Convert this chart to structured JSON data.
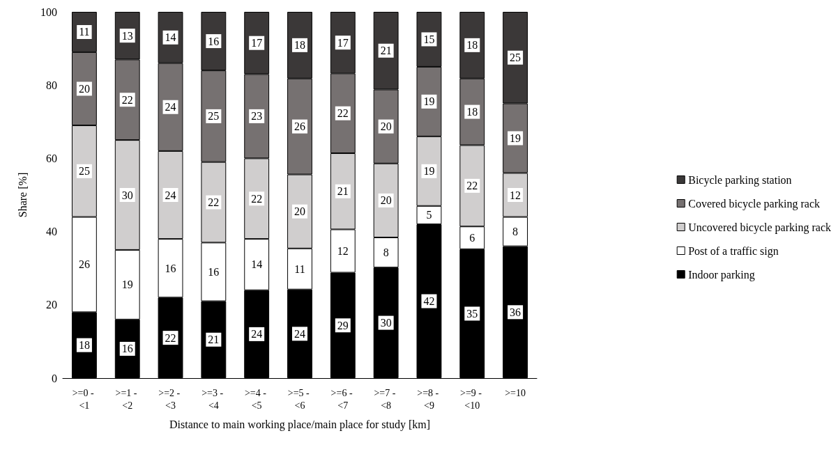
{
  "chart_data": {
    "type": "bar",
    "stacked": true,
    "xlabel": "Distance to main working place/main place for study [km]",
    "ylabel": "Share [%]",
    "categories": [
      ">=0 - <1",
      ">=1 - <2",
      ">=2 - <3",
      ">=3 - <4",
      ">=4 - <5",
      ">=5 - <6",
      ">=6 - <7",
      ">=7 - <8",
      ">=8 - <9",
      ">=9 - <10",
      ">=10"
    ],
    "series": [
      {
        "name": "Indoor parking",
        "color": "#000000",
        "values": [
          18,
          16,
          22,
          21,
          24,
          24.2,
          28.8,
          30.2,
          42,
          35.2,
          36
        ],
        "value_labels": [
          "18",
          "16",
          "22",
          "21",
          "24",
          "24",
          "29",
          "30",
          "42",
          "35",
          "36"
        ]
      },
      {
        "name": "Post of a traffic sign",
        "color": "#ffffff",
        "values": [
          26,
          19,
          16,
          16,
          14,
          11.2,
          11.8,
          8.2,
          5,
          6.2,
          8
        ],
        "value_labels": [
          "26",
          "19",
          "16",
          "16",
          "14",
          "11",
          "12",
          "8",
          "5",
          "6",
          "8"
        ]
      },
      {
        "name": "Uncovered bicycle parking rack",
        "color": "#d0cece",
        "values": [
          25,
          30,
          24,
          22,
          22,
          20.2,
          20.8,
          20.2,
          19,
          22.2,
          12
        ],
        "value_labels": [
          "25",
          "30",
          "24",
          "22",
          "22",
          "20",
          "21",
          "20",
          "19",
          "22",
          "12"
        ]
      },
      {
        "name": "Covered bicycle parking rack",
        "color": "#767171",
        "values": [
          20,
          22,
          24,
          25,
          23,
          26.2,
          21.8,
          20.2,
          19,
          18.2,
          19
        ],
        "value_labels": [
          "20",
          "22",
          "24",
          "25",
          "23",
          "26",
          "22",
          "20",
          "19",
          "18",
          "19"
        ]
      },
      {
        "name": "Bicycle parking station",
        "color": "#3b3838",
        "values": [
          11,
          13,
          14,
          16,
          17,
          18.2,
          16.8,
          21.2,
          15,
          18.2,
          25
        ],
        "value_labels": [
          "11",
          "13",
          "14",
          "16",
          "17",
          "18",
          "17",
          "21",
          "15",
          "18",
          "25"
        ]
      }
    ],
    "ylim": [
      0,
      100
    ],
    "yticks": [
      0,
      20,
      40,
      60,
      80,
      100
    ],
    "grid": false,
    "legend": "right"
  }
}
